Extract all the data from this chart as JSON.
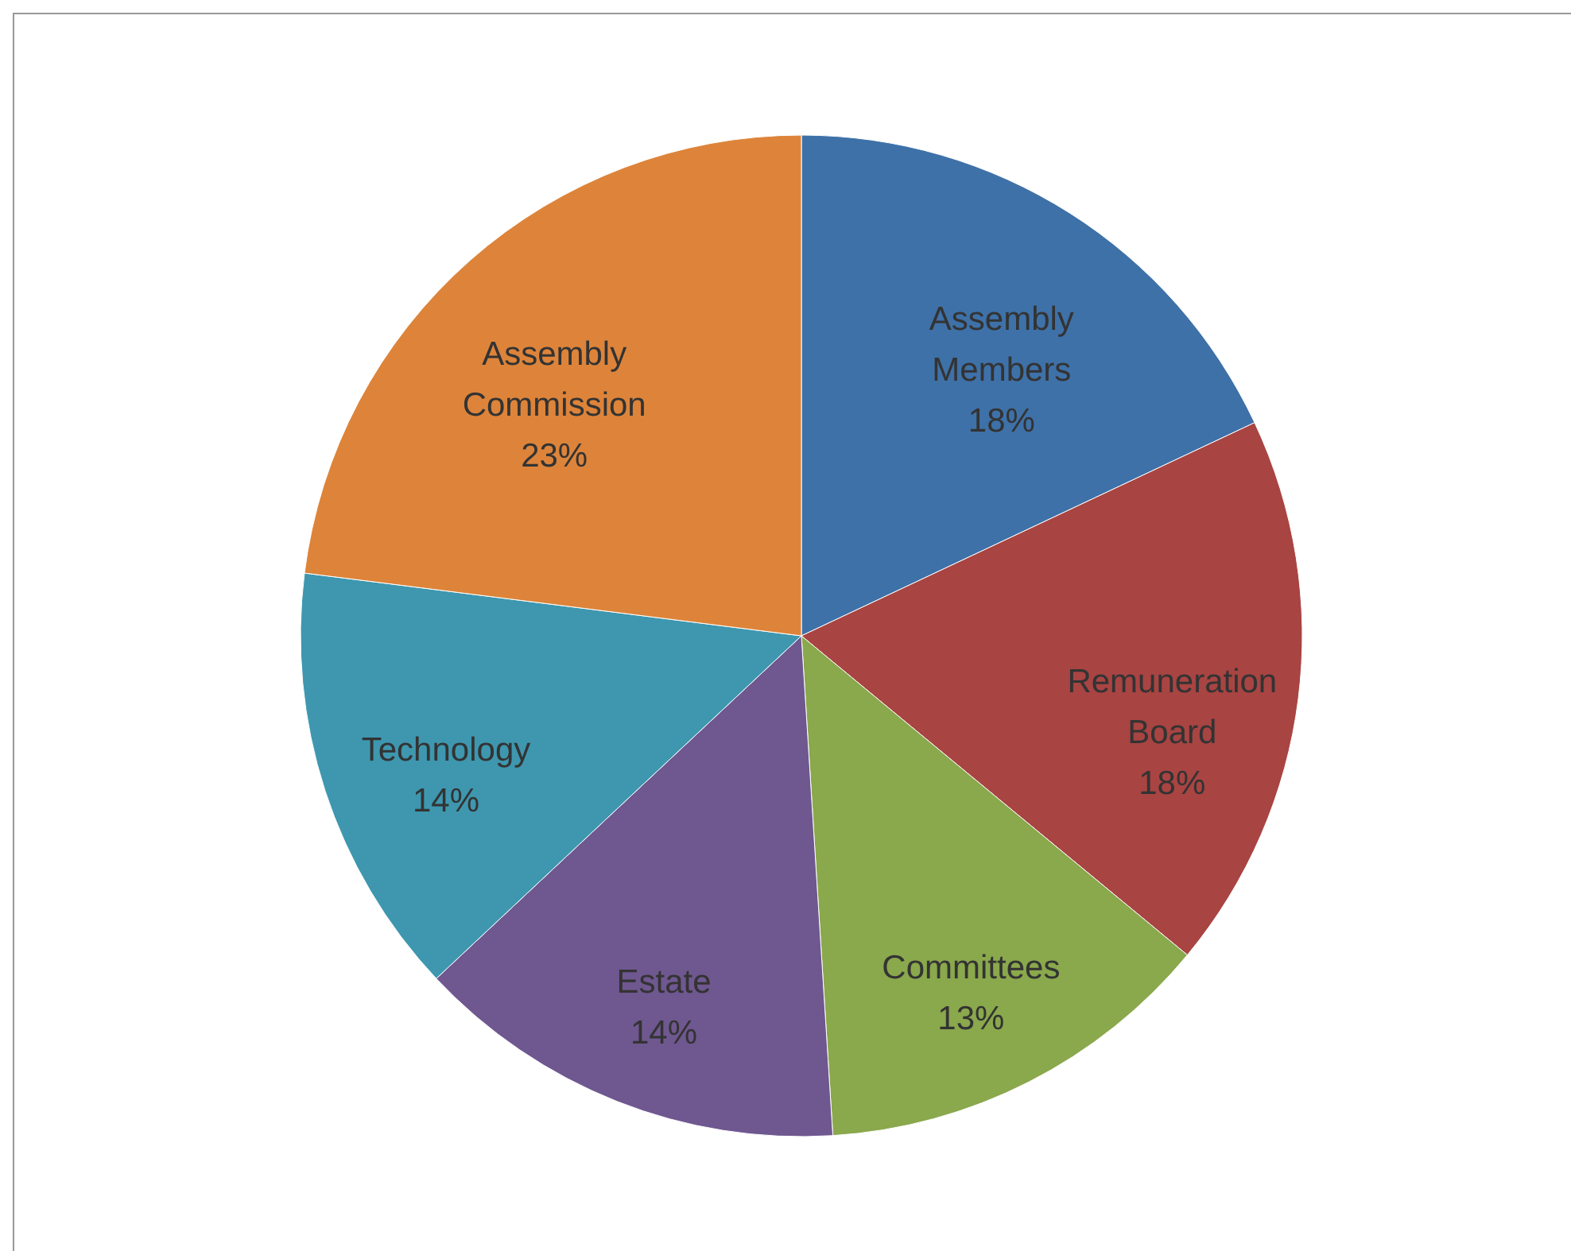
{
  "chart_data": {
    "type": "pie",
    "categories": [
      "Assembly Members",
      "Remuneration Board",
      "Committees",
      "Estate",
      "Technology",
      "Assembly Commission"
    ],
    "values": [
      18,
      18,
      13,
      14,
      14,
      23
    ],
    "value_labels": [
      "18%",
      "18%",
      "13%",
      "14%",
      "14%",
      "23%"
    ],
    "colors": [
      "#3e71a8",
      "#a84442",
      "#8aa84c",
      "#6f5790",
      "#3e97af",
      "#dd843a"
    ],
    "legend": false
  }
}
